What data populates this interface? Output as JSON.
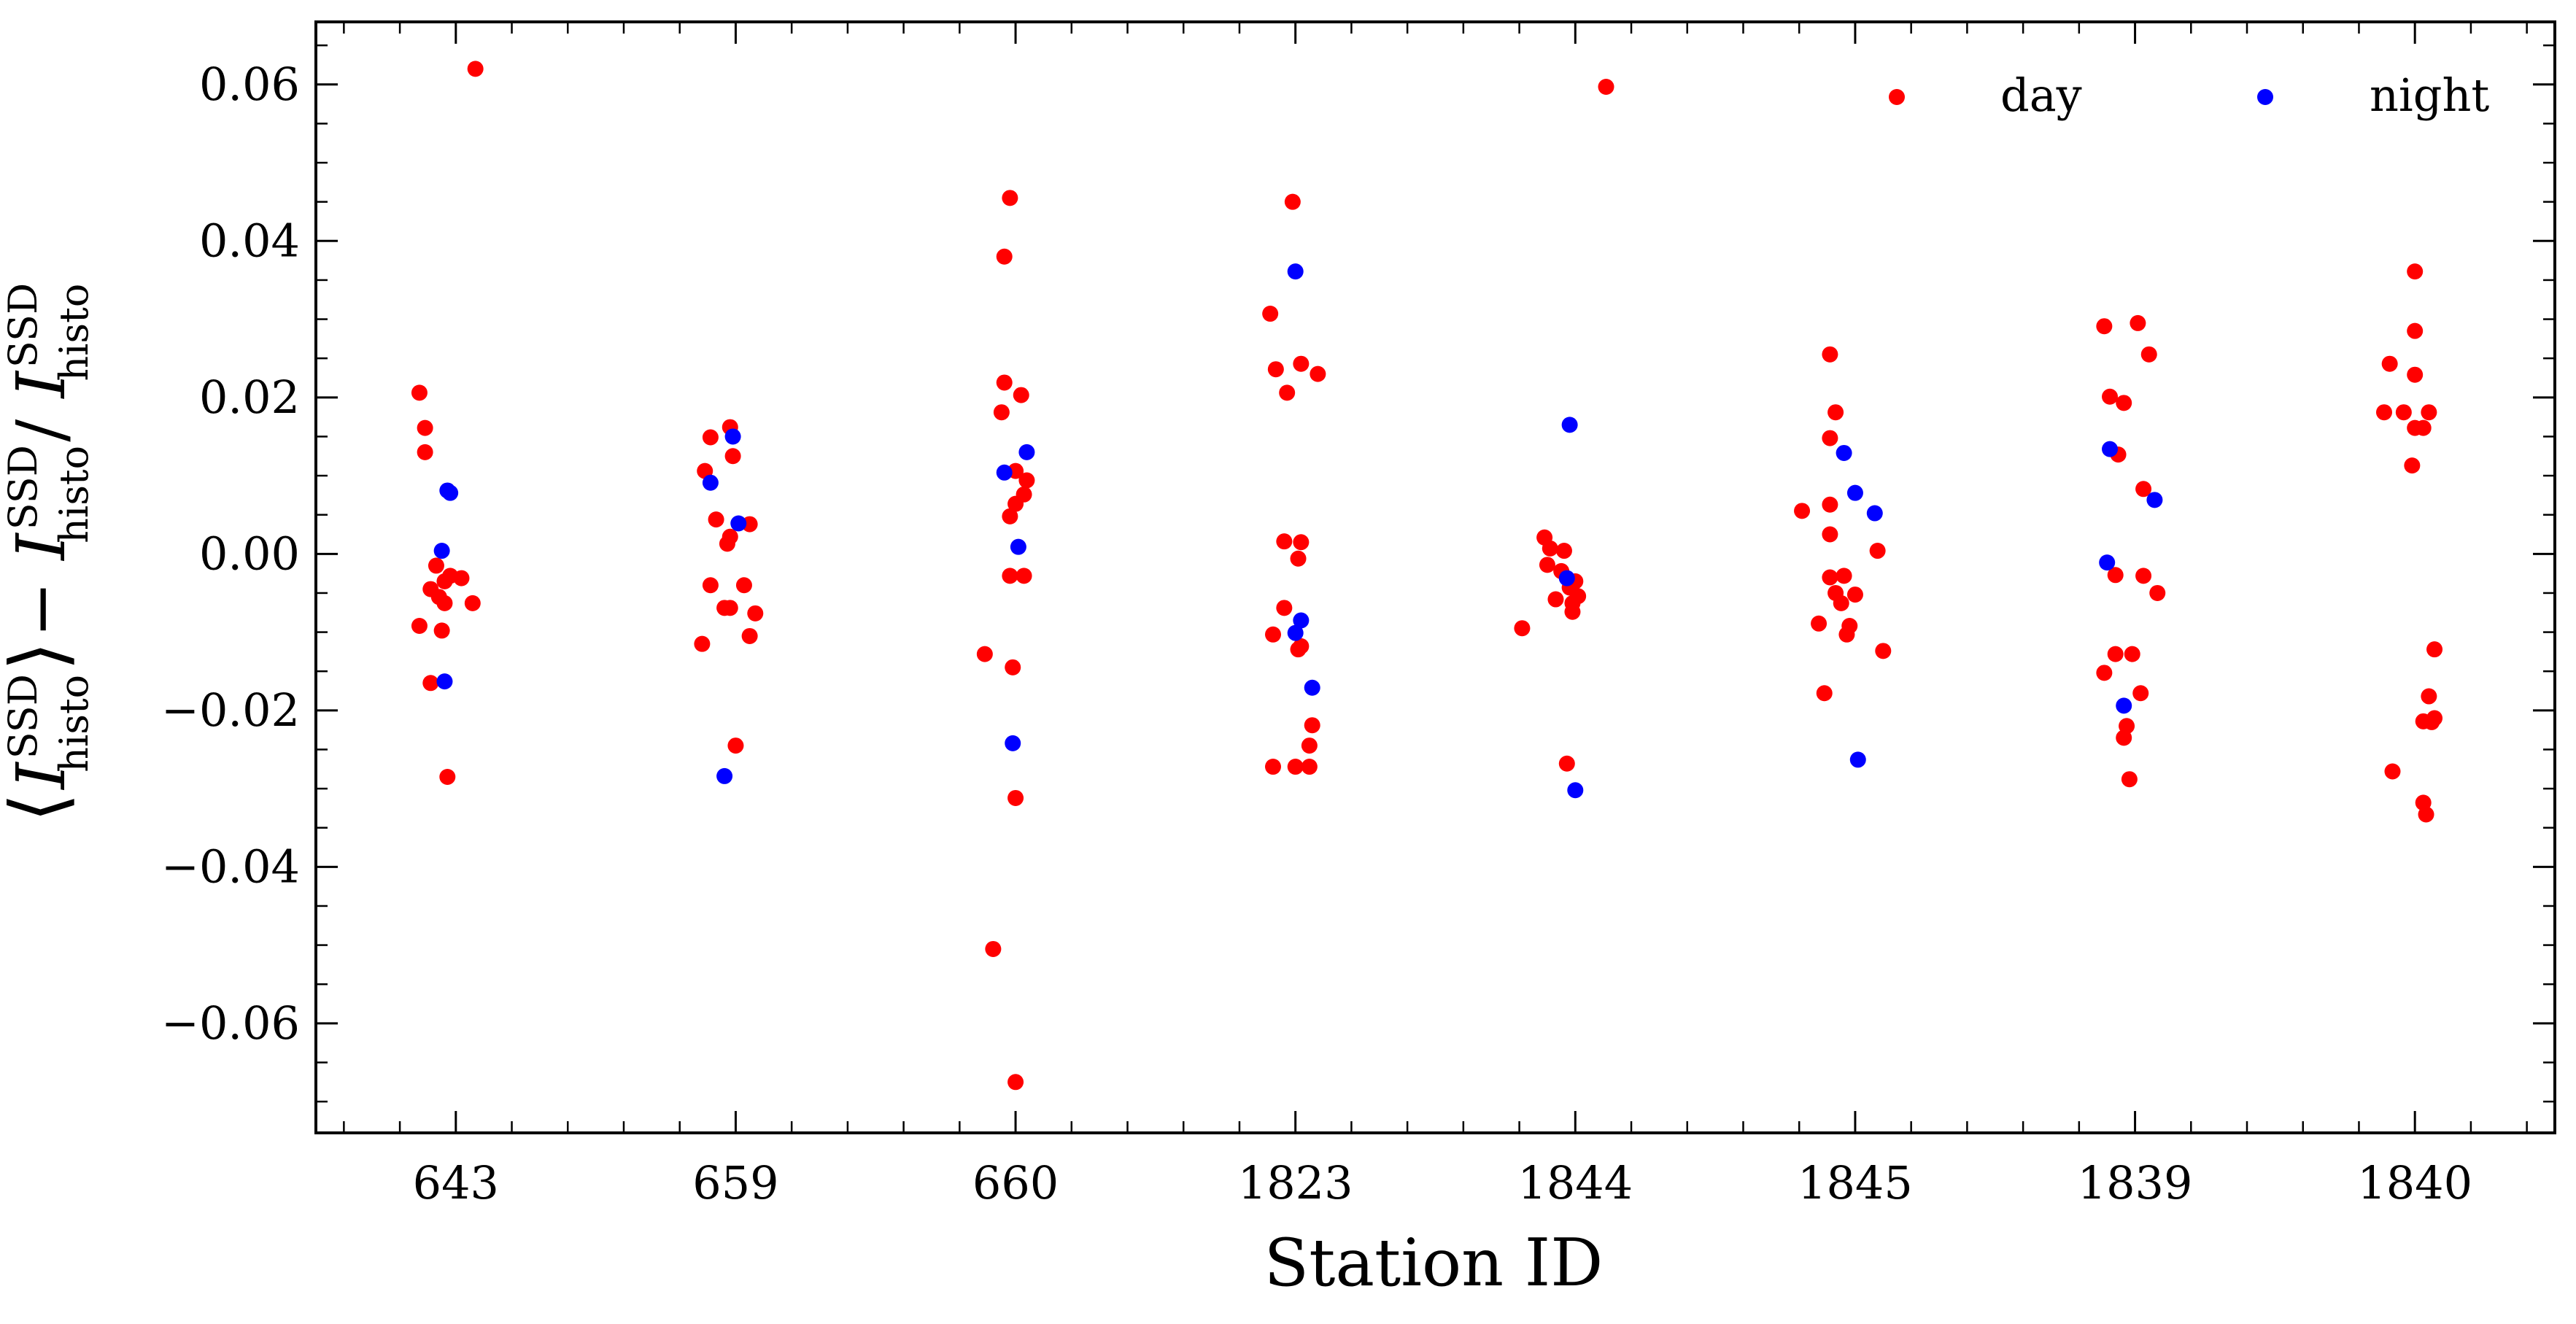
{
  "chart_data": {
    "type": "scatter",
    "title": "",
    "xlabel": "Station ID",
    "ylabel": {
      "open": "⟨",
      "main1": "I",
      "sup1": "SSD",
      "sub1": "histo",
      "close": "⟩",
      "minus": " − ",
      "main2": "I",
      "sup2": "SSD",
      "sub2": "histo",
      "slash": " / ",
      "main3": "I",
      "sup3": "SSD",
      "sub3": "histo"
    },
    "categories": [
      "643",
      "659",
      "660",
      "1823",
      "1844",
      "1845",
      "1839",
      "1840"
    ],
    "ylim": [
      -0.074,
      0.068
    ],
    "yticks": [
      -0.06,
      -0.04,
      -0.02,
      0.0,
      0.02,
      0.04,
      0.06
    ],
    "ytick_labels": [
      "−0.06",
      "−0.04",
      "−0.02",
      "0.00",
      "0.02",
      "0.04",
      "0.06"
    ],
    "grid": false,
    "legend_position": "top-right",
    "series": [
      {
        "name": "day",
        "color": "#ff0000",
        "points": [
          [
            -0.13,
            0.0206
          ],
          [
            -0.11,
            0.0161
          ],
          [
            -0.11,
            0.013
          ],
          [
            -0.07,
            -0.0015
          ],
          [
            -0.09,
            -0.0045
          ],
          [
            -0.06,
            -0.0055
          ],
          [
            -0.04,
            -0.0035
          ],
          [
            -0.02,
            -0.0028
          ],
          [
            0.02,
            -0.0031
          ],
          [
            -0.13,
            -0.0092
          ],
          [
            -0.04,
            -0.0063
          ],
          [
            -0.05,
            -0.0098
          ],
          [
            0.06,
            -0.0063
          ],
          [
            -0.09,
            -0.0165
          ],
          [
            -0.03,
            -0.0285
          ],
          [
            0.07,
            0.062
          ],
          [
            -0.11,
            0.0106
          ],
          [
            -0.09,
            0.0149
          ],
          [
            -0.02,
            0.0162
          ],
          [
            -0.01,
            0.0125
          ],
          [
            -0.07,
            0.0044
          ],
          [
            -0.02,
            0.0022
          ],
          [
            -0.03,
            0.0013
          ],
          [
            0.05,
            0.0038
          ],
          [
            -0.09,
            -0.004
          ],
          [
            0.03,
            -0.004
          ],
          [
            -0.04,
            -0.0069
          ],
          [
            -0.02,
            -0.0069
          ],
          [
            0.07,
            -0.0076
          ],
          [
            -0.12,
            -0.0115
          ],
          [
            0.05,
            -0.0105
          ],
          [
            0.0,
            -0.0245
          ],
          [
            -0.02,
            0.0455
          ],
          [
            -0.04,
            0.038
          ],
          [
            -0.04,
            0.0219
          ],
          [
            0.02,
            0.0203
          ],
          [
            -0.05,
            0.0181
          ],
          [
            0.04,
            0.0094
          ],
          [
            0.0,
            0.0106
          ],
          [
            0.03,
            0.0076
          ],
          [
            0.0,
            0.0064
          ],
          [
            -0.02,
            0.0048
          ],
          [
            -0.02,
            -0.0028
          ],
          [
            0.03,
            -0.0028
          ],
          [
            -0.11,
            -0.0128
          ],
          [
            -0.01,
            -0.0145
          ],
          [
            0.0,
            -0.0312
          ],
          [
            -0.08,
            -0.0505
          ],
          [
            0.0,
            -0.0675
          ],
          [
            -0.09,
            0.0307
          ],
          [
            -0.07,
            0.0236
          ],
          [
            0.02,
            0.0243
          ],
          [
            -0.03,
            0.0206
          ],
          [
            0.08,
            0.023
          ],
          [
            -0.04,
            0.0016
          ],
          [
            0.02,
            0.0015
          ],
          [
            0.01,
            -0.0006
          ],
          [
            -0.04,
            -0.0069
          ],
          [
            -0.08,
            -0.0103
          ],
          [
            0.02,
            -0.0118
          ],
          [
            0.01,
            -0.0122
          ],
          [
            0.06,
            -0.0219
          ],
          [
            0.05,
            -0.0245
          ],
          [
            -0.08,
            -0.0272
          ],
          [
            0.0,
            -0.0272
          ],
          [
            0.05,
            -0.0272
          ],
          [
            -0.01,
            0.045
          ],
          [
            -0.11,
            0.0021
          ],
          [
            -0.09,
            0.0007
          ],
          [
            -0.04,
            0.0004
          ],
          [
            -0.1,
            -0.0014
          ],
          [
            -0.05,
            -0.0022
          ],
          [
            0.0,
            -0.0035
          ],
          [
            -0.02,
            -0.0043
          ],
          [
            0.01,
            -0.0054
          ],
          [
            -0.01,
            -0.0063
          ],
          [
            -0.07,
            -0.0058
          ],
          [
            -0.01,
            -0.0074
          ],
          [
            -0.19,
            -0.0095
          ],
          [
            -0.03,
            -0.0268
          ],
          [
            0.11,
            0.0597
          ],
          [
            -0.09,
            0.0255
          ],
          [
            -0.07,
            0.0181
          ],
          [
            -0.09,
            0.0148
          ],
          [
            -0.09,
            0.0063
          ],
          [
            -0.19,
            0.0055
          ],
          [
            -0.09,
            0.0025
          ],
          [
            0.08,
            0.0004
          ],
          [
            -0.04,
            -0.0028
          ],
          [
            -0.09,
            -0.003
          ],
          [
            -0.07,
            -0.005
          ],
          [
            0.0,
            -0.0052
          ],
          [
            -0.05,
            -0.0063
          ],
          [
            -0.13,
            -0.0089
          ],
          [
            -0.02,
            -0.0092
          ],
          [
            -0.03,
            -0.0103
          ],
          [
            0.1,
            -0.0124
          ],
          [
            -0.11,
            -0.0178
          ],
          [
            -0.11,
            0.0291
          ],
          [
            0.01,
            0.0295
          ],
          [
            -0.09,
            0.0201
          ],
          [
            -0.04,
            0.0193
          ],
          [
            0.05,
            0.0255
          ],
          [
            -0.06,
            0.0127
          ],
          [
            0.03,
            0.0083
          ],
          [
            -0.07,
            -0.0027
          ],
          [
            0.03,
            -0.0028
          ],
          [
            0.08,
            -0.005
          ],
          [
            -0.07,
            -0.0128
          ],
          [
            -0.01,
            -0.0128
          ],
          [
            -0.11,
            -0.0152
          ],
          [
            0.02,
            -0.0178
          ],
          [
            -0.03,
            -0.022
          ],
          [
            -0.04,
            -0.0235
          ],
          [
            -0.02,
            -0.0288
          ],
          [
            -0.09,
            0.0243
          ],
          [
            -0.04,
            0.0181
          ],
          [
            -0.11,
            0.0181
          ],
          [
            0.0,
            0.0361
          ],
          [
            0.0,
            0.0285
          ],
          [
            0.0,
            0.0229
          ],
          [
            0.0,
            0.0161
          ],
          [
            0.03,
            0.0161
          ],
          [
            0.05,
            0.0181
          ],
          [
            -0.01,
            0.0113
          ],
          [
            0.07,
            -0.0122
          ],
          [
            -0.08,
            -0.0278
          ],
          [
            0.05,
            -0.0182
          ],
          [
            0.03,
            -0.0214
          ],
          [
            0.07,
            -0.021
          ],
          [
            0.06,
            -0.0215
          ],
          [
            0.03,
            -0.0318
          ],
          [
            0.04,
            -0.0333
          ]
        ]
      },
      {
        "name": "night",
        "color": "#0000ff",
        "points": [
          [
            -0.05,
            0.0004
          ],
          [
            -0.03,
            0.0081
          ],
          [
            -0.02,
            0.0078
          ],
          [
            -0.04,
            -0.0163
          ],
          [
            -0.09,
            0.0091
          ],
          [
            -0.01,
            0.015
          ],
          [
            0.01,
            0.0039
          ],
          [
            -0.04,
            -0.0284
          ],
          [
            -0.04,
            0.0104
          ],
          [
            0.04,
            0.013
          ],
          [
            0.01,
            0.0009
          ],
          [
            -0.01,
            -0.0242
          ],
          [
            0.0,
            0.0361
          ],
          [
            0.02,
            -0.0085
          ],
          [
            0.0,
            -0.0101
          ],
          [
            0.06,
            -0.0171
          ],
          [
            -0.02,
            0.0165
          ],
          [
            -0.03,
            -0.0031
          ],
          [
            0.0,
            -0.0302
          ],
          [
            -0.04,
            0.0129
          ],
          [
            0.0,
            0.0078
          ],
          [
            0.07,
            0.0052
          ],
          [
            0.01,
            -0.0263
          ],
          [
            -0.09,
            0.0134
          ],
          [
            -0.1,
            -0.0011
          ],
          [
            -0.04,
            -0.0194
          ],
          [
            0.07,
            0.0069
          ]
        ]
      }
    ]
  }
}
